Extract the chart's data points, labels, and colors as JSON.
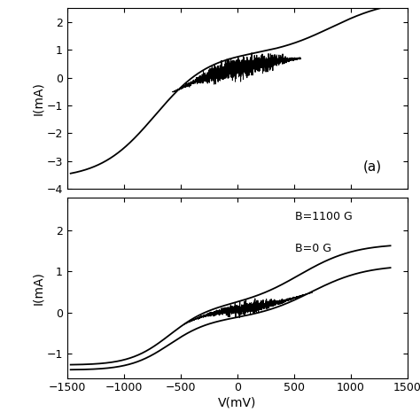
{
  "panel_a": {
    "ylabel": "I(mA)",
    "xlabel": "V(mV)",
    "xlim": [
      -1500,
      1500
    ],
    "ylim": [
      -4,
      2.5
    ],
    "yticks": [
      -4,
      -3,
      -2,
      -1,
      0,
      1,
      2
    ],
    "xticks": [
      -1500,
      -1000,
      -500,
      0,
      500,
      1000,
      1500
    ],
    "label": "(a)"
  },
  "panel_b": {
    "ylabel": "I(mA)",
    "xlabel": "V(mV)",
    "xlim": [
      -1500,
      1500
    ],
    "ylim": [
      -1.6,
      2.8
    ],
    "yticks": [
      -1,
      0,
      1,
      2
    ],
    "xticks": [
      -1500,
      -1000,
      -500,
      0,
      500,
      1000,
      1500
    ],
    "label_b0": "B=0 G",
    "label_b1100": "B=1100 G"
  },
  "line_color": "#000000",
  "background_color": "#ffffff"
}
